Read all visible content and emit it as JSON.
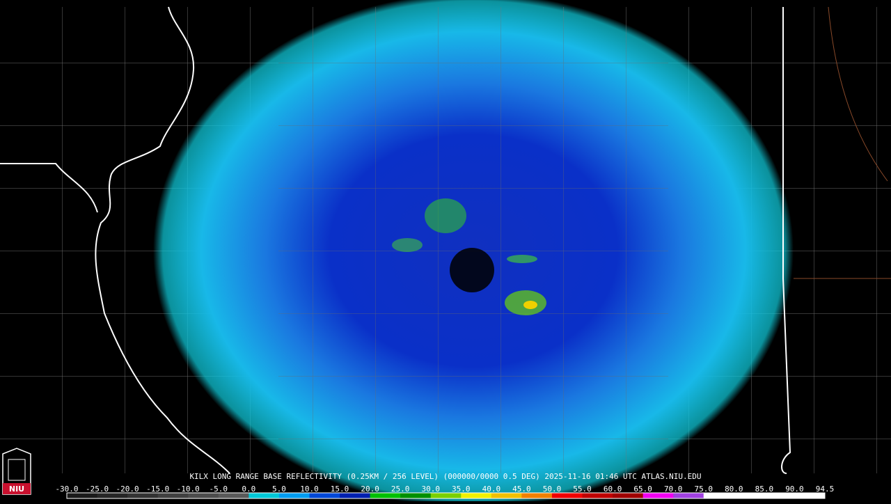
{
  "caption": "KILX LONG RANGE BASE REFLECTIVITY (0.25KM / 256 LEVEL) (000000/0000 0.5 DEG) 2025-11-16 01:46 UTC  ATLAS.NIU.EDU",
  "logo": "NIU",
  "colorbar": {
    "labels": [
      "-30.0",
      "-25.0",
      "-20.0",
      "-15.0",
      "-10.0",
      "-5.0",
      "0.0",
      "5.0",
      "10.0",
      "15.0",
      "20.0",
      "25.0",
      "30.0",
      "35.0",
      "40.0",
      "45.0",
      "50.0",
      "55.0",
      "60.0",
      "65.0",
      "70.0",
      "75.0",
      "80.0",
      "85.0",
      "90.0",
      "94.5"
    ],
    "colors": [
      "#1a1a1a",
      "#262626",
      "#333333",
      "#404040",
      "#4d4d4d",
      "#5a5a5a",
      "#00c8d8",
      "#009cf0",
      "#0048d8",
      "#0020b0",
      "#00c000",
      "#009000",
      "#7ad000",
      "#f0f000",
      "#f0c000",
      "#f08000",
      "#f00000",
      "#c00000",
      "#a00000",
      "#f000f0",
      "#a040e0",
      "#ffffff",
      "#ffffff",
      "#ffffff",
      "#ffffff"
    ]
  }
}
